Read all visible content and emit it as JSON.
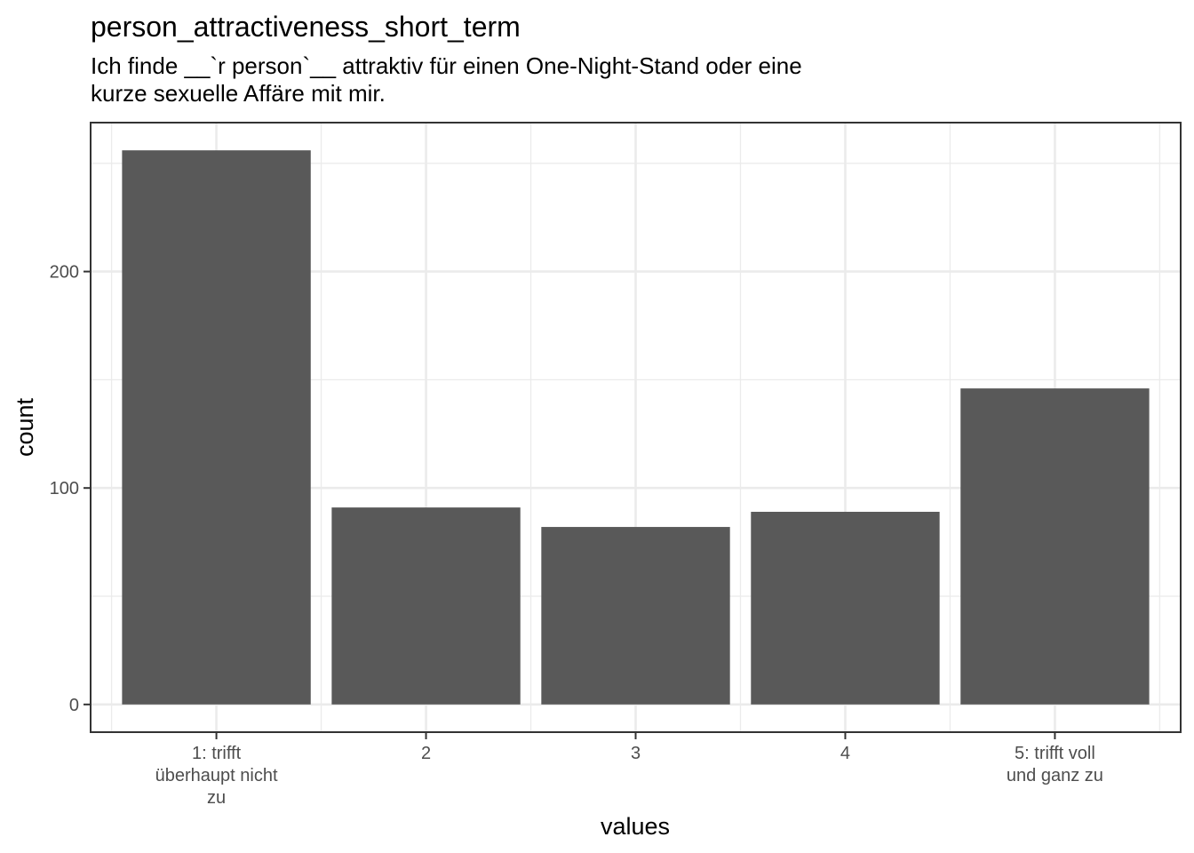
{
  "title": "person_attractiveness_short_term",
  "subtitle_lines": [
    "Ich finde __`r person`__ attraktiv für einen One-Night-Stand oder eine",
    "kurze sexuelle Affäre mit mir."
  ],
  "chart_data": {
    "type": "bar",
    "categories": [
      "1: trifft überhaupt nicht zu",
      "2",
      "3",
      "4",
      "5: trifft voll und ganz zu"
    ],
    "category_label_lines": [
      [
        "1: trifft",
        "überhaupt nicht",
        "zu"
      ],
      [
        "2"
      ],
      [
        "3"
      ],
      [
        "4"
      ],
      [
        "5: trifft voll",
        "und ganz zu"
      ]
    ],
    "values": [
      256,
      91,
      82,
      89,
      146
    ],
    "xlabel": "values",
    "ylabel": "count",
    "ylim": [
      -12.8,
      268.8
    ],
    "yticks": [
      0,
      100,
      200
    ],
    "ytick_labels": [
      "0",
      "100",
      "200"
    ],
    "grid": true,
    "bar_color": "#595959",
    "grid_color": "#ebebeb",
    "panel_border_color": "#333333"
  }
}
